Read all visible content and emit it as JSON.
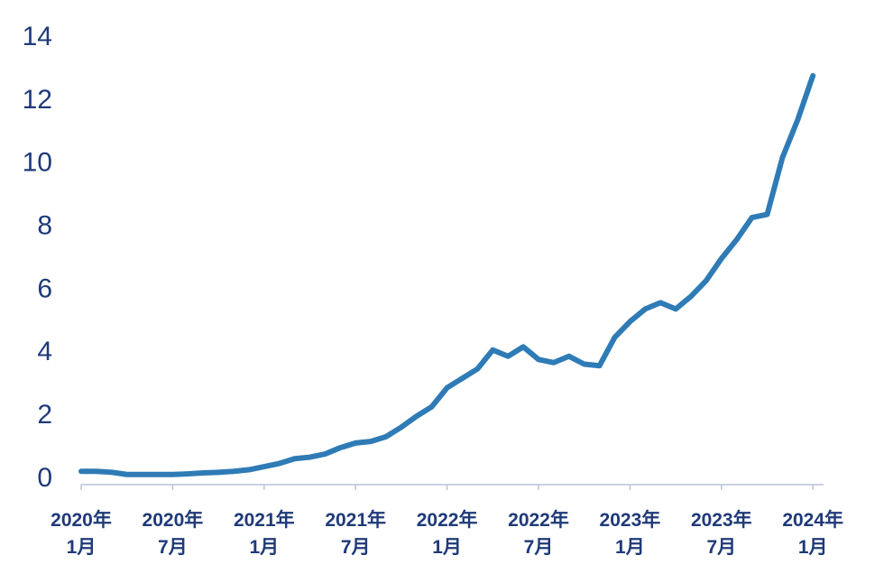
{
  "chart_data": {
    "type": "line",
    "x": [
      "2020-01",
      "2020-02",
      "2020-03",
      "2020-04",
      "2020-05",
      "2020-06",
      "2020-07",
      "2020-08",
      "2020-09",
      "2020-10",
      "2020-11",
      "2020-12",
      "2021-01",
      "2021-02",
      "2021-03",
      "2021-04",
      "2021-05",
      "2021-06",
      "2021-07",
      "2021-08",
      "2021-09",
      "2021-10",
      "2021-11",
      "2021-12",
      "2022-01",
      "2022-02",
      "2022-03",
      "2022-04",
      "2022-05",
      "2022-06",
      "2022-07",
      "2022-08",
      "2022-09",
      "2022-10",
      "2022-11",
      "2022-12",
      "2023-01",
      "2023-02",
      "2023-03",
      "2023-04",
      "2023-05",
      "2023-06",
      "2023-07",
      "2023-08",
      "2023-09",
      "2023-10",
      "2023-11",
      "2023-12",
      "2024-01"
    ],
    "series": [
      {
        "color": "#2e7bb6",
        "values": [
          0.25,
          0.25,
          0.22,
          0.15,
          0.15,
          0.15,
          0.15,
          0.17,
          0.2,
          0.22,
          0.25,
          0.3,
          0.4,
          0.5,
          0.65,
          0.7,
          0.8,
          1.0,
          1.15,
          1.2,
          1.35,
          1.65,
          2.0,
          2.3,
          2.9,
          3.2,
          3.5,
          4.1,
          3.9,
          4.2,
          3.8,
          3.7,
          3.9,
          3.65,
          3.6,
          4.5,
          5.0,
          5.4,
          5.6,
          5.4,
          5.8,
          6.3,
          7.0,
          7.6,
          8.3,
          8.4,
          10.2,
          11.4,
          12.8
        ]
      }
    ],
    "ylim": [
      0,
      14
    ],
    "yticks": [
      0,
      2,
      4,
      6,
      8,
      10,
      12,
      14
    ],
    "xticks": [
      {
        "value": "2020-01",
        "label": "2020年\n1月"
      },
      {
        "value": "2020-07",
        "label": "2020年\n7月"
      },
      {
        "value": "2021-01",
        "label": "2021年\n1月"
      },
      {
        "value": "2021-07",
        "label": "2021年\n7月"
      },
      {
        "value": "2022-01",
        "label": "2022年\n1月"
      },
      {
        "value": "2022-07",
        "label": "2022年\n7月"
      },
      {
        "value": "2023-01",
        "label": "2023年\n1月"
      },
      {
        "value": "2023-07",
        "label": "2023年\n7月"
      },
      {
        "value": "2024-01",
        "label": "2024年\n1月"
      }
    ]
  }
}
